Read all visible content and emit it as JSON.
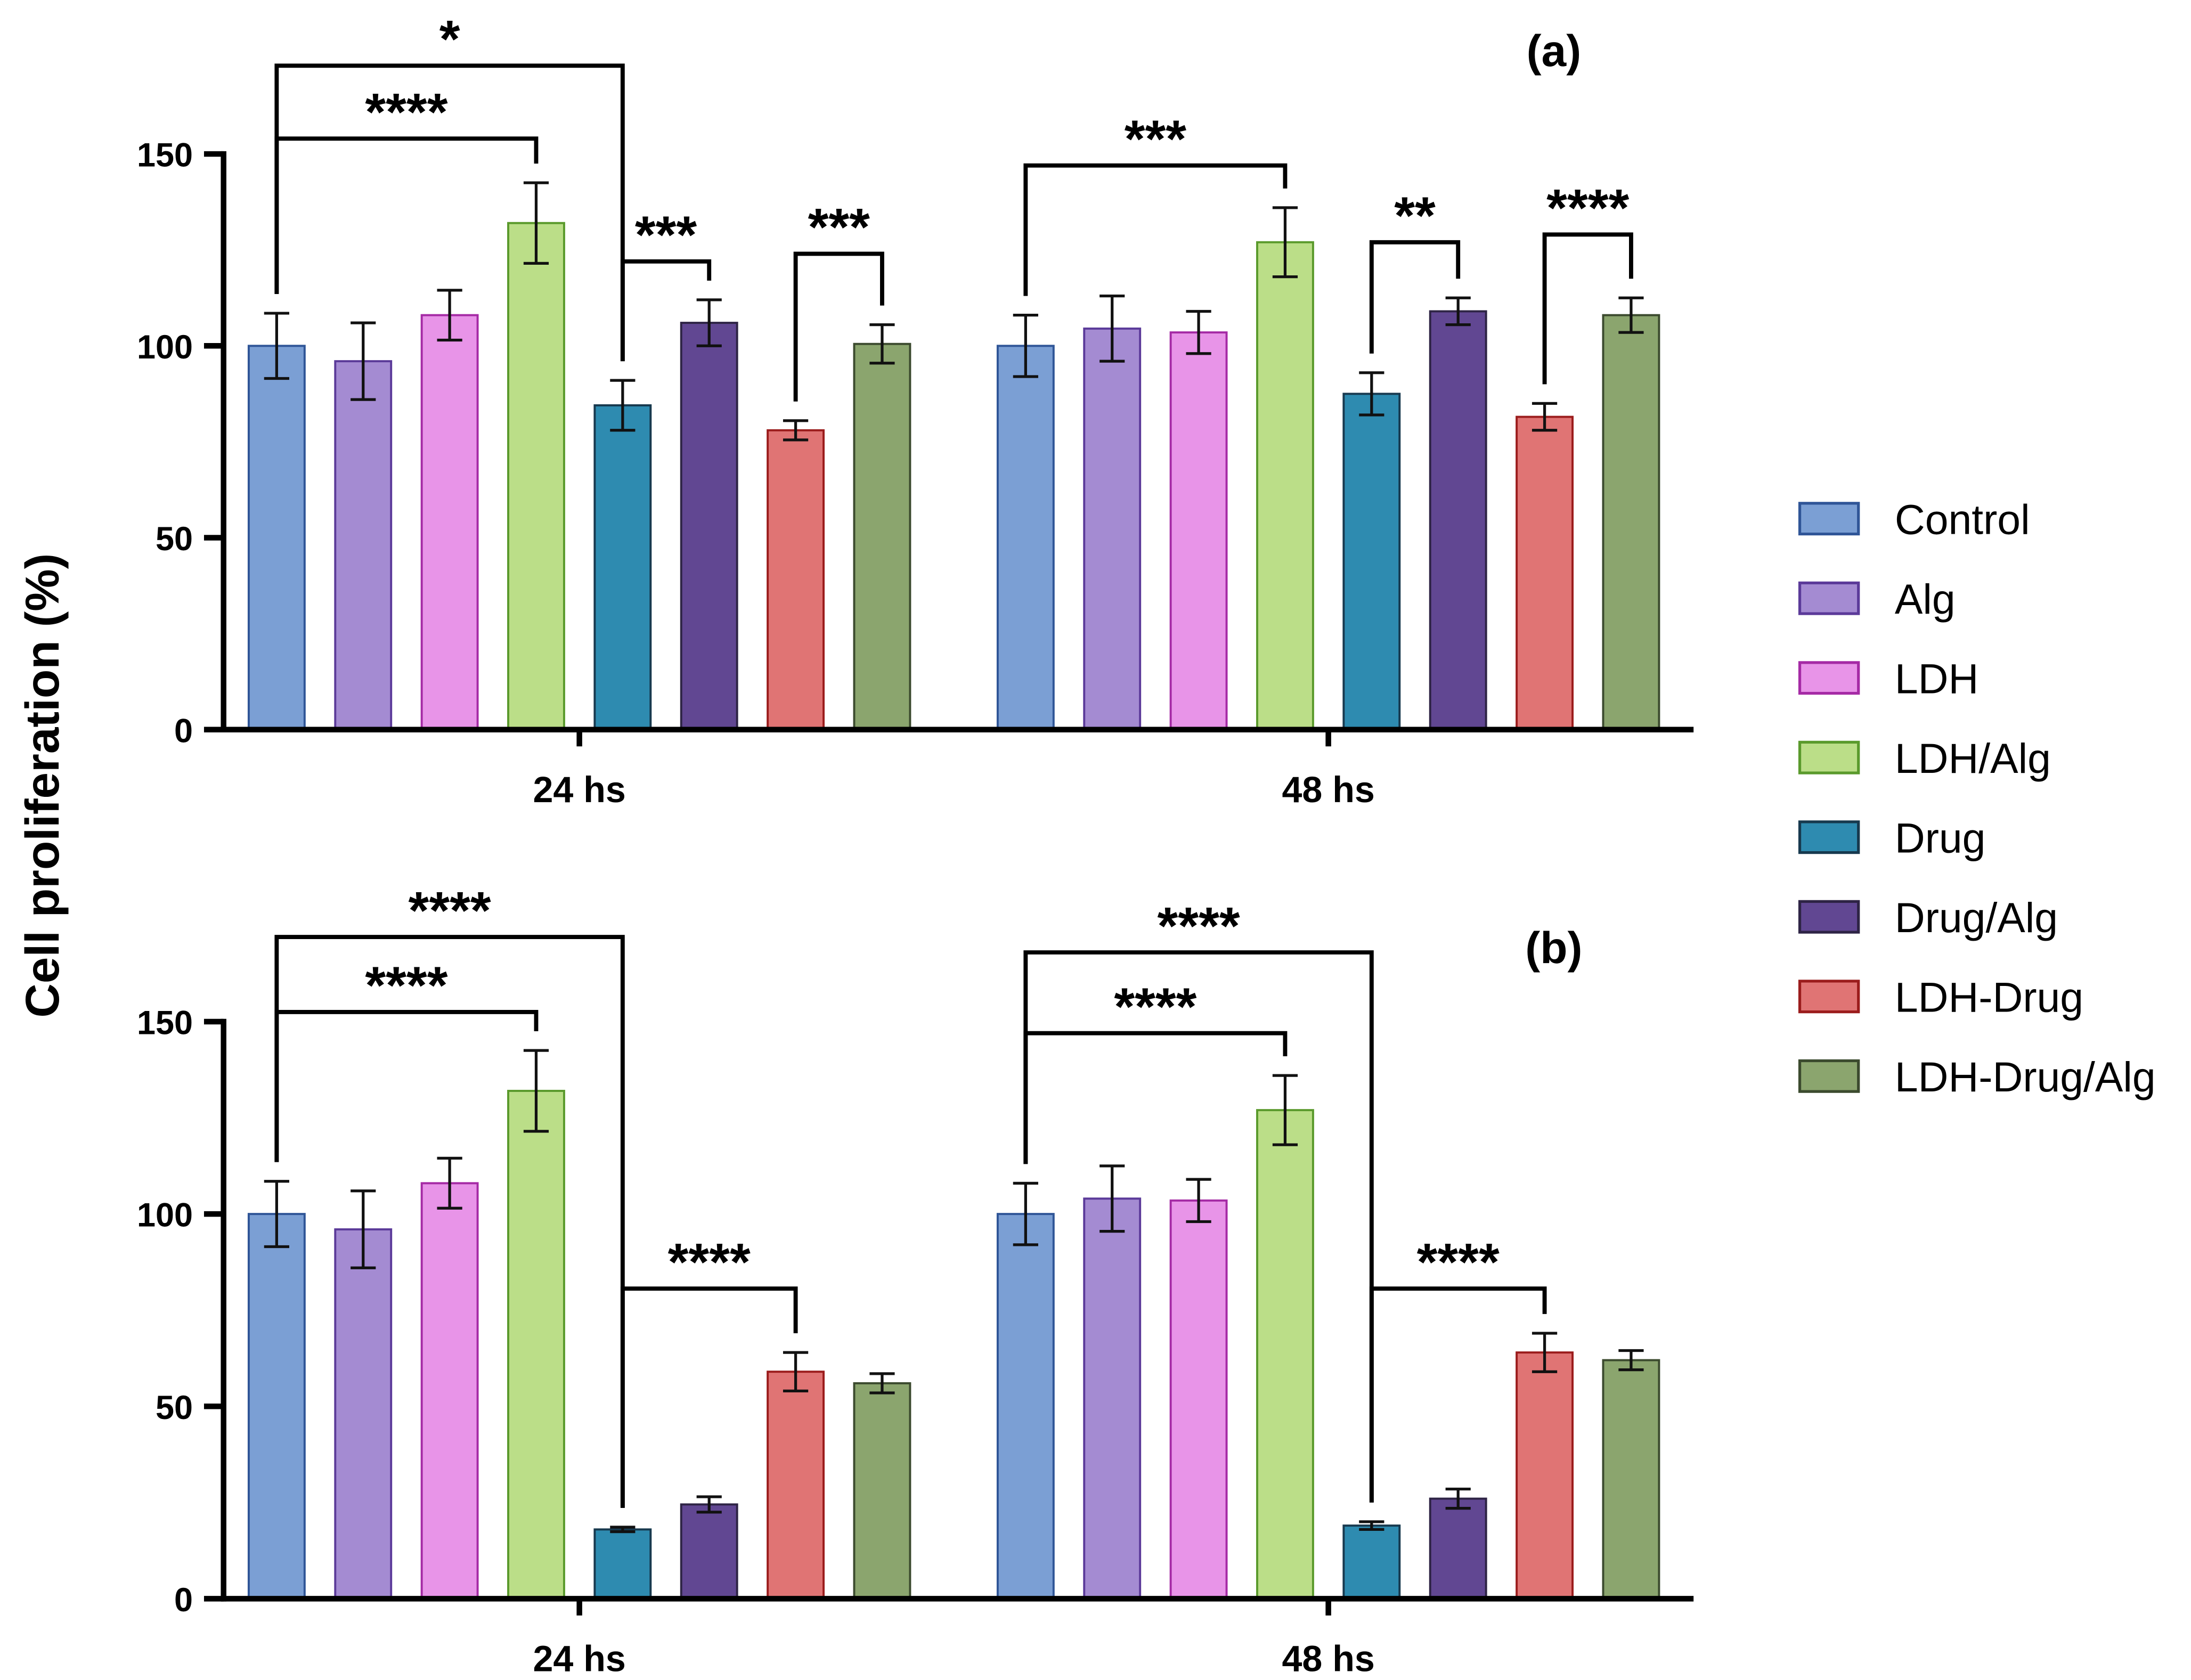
{
  "chart_data": {
    "type": "bar",
    "ylabel": "Cell proliferation (%)",
    "ylim": [
      0,
      150
    ],
    "yticks": [
      0,
      50,
      100,
      150
    ],
    "categories": [
      "24 hs",
      "48 hs"
    ],
    "legend": {
      "placement": "right",
      "entries": [
        {
          "name": "Control",
          "fill": "#7b9fd4",
          "stroke": "#2f5597"
        },
        {
          "name": "Alg",
          "fill": "#a48bd2",
          "stroke": "#5b3a99"
        },
        {
          "name": "LDH",
          "fill": "#e894e8",
          "stroke": "#a52aa5"
        },
        {
          "name": "LDH/Alg",
          "fill": "#bbde88",
          "stroke": "#5a9a2c"
        },
        {
          "name": "Drug",
          "fill": "#2e8bb0",
          "stroke": "#17394e"
        },
        {
          "name": "Drug/Alg",
          "fill": "#614792",
          "stroke": "#2e2445"
        },
        {
          "name": "LDH-Drug",
          "fill": "#e07474",
          "stroke": "#9b1c1c"
        },
        {
          "name": "LDH-Drug/Alg",
          "fill": "#8ba56e",
          "stroke": "#3b4a2e"
        }
      ]
    },
    "panels": [
      {
        "label": "(a)",
        "groups": [
          {
            "category": "24 hs",
            "values": [
              100,
              96,
              108,
              132,
              84.5,
              106,
              78,
              100.5
            ],
            "errors": [
              8.5,
              10,
              6.5,
              10.5,
              6.5,
              6,
              2.5,
              5
            ]
          },
          {
            "category": "48 hs",
            "values": [
              100,
              104.5,
              103.5,
              127,
              87.5,
              109,
              81.5,
              108
            ],
            "errors": [
              8,
              8.5,
              5.5,
              9,
              5.5,
              3.5,
              3.5,
              4.5
            ]
          }
        ],
        "significance": [
          {
            "group": 0,
            "from": 0,
            "to": 4,
            "level": 173,
            "label": "*"
          },
          {
            "group": 0,
            "from": 0,
            "to": 3,
            "level": 154,
            "label": "****"
          },
          {
            "group": 0,
            "from": 4,
            "to": 5,
            "level": 122,
            "label": "***"
          },
          {
            "group": 0,
            "from": 6,
            "to": 7,
            "level": 124,
            "label": "***"
          },
          {
            "group": 1,
            "from": 0,
            "to": 3,
            "level": 147,
            "label": "***"
          },
          {
            "group": 1,
            "from": 4,
            "to": 5,
            "level": 127,
            "label": "**"
          },
          {
            "group": 1,
            "from": 6,
            "to": 7,
            "level": 129,
            "label": "****"
          }
        ]
      },
      {
        "label": "(b)",
        "groups": [
          {
            "category": "24 hs",
            "values": [
              100,
              96,
              108,
              132,
              18,
              24.5,
              59,
              56
            ],
            "errors": [
              8.5,
              10,
              6.5,
              10.5,
              0.6,
              2,
              5,
              2.5
            ]
          },
          {
            "category": "48 hs",
            "values": [
              100,
              104,
              103.5,
              127,
              19,
              26,
              64,
              62
            ],
            "errors": [
              8,
              8.5,
              5.5,
              9,
              1,
              2.5,
              5,
              2.5
            ]
          }
        ],
        "significance": [
          {
            "group": 0,
            "from": 0,
            "to": 4,
            "level": 172,
            "label": "****"
          },
          {
            "group": 0,
            "from": 0,
            "to": 3,
            "level": 152.5,
            "label": "****"
          },
          {
            "group": 0,
            "from": 4,
            "to": 6,
            "level": 80.6,
            "label": "****"
          },
          {
            "group": 1,
            "from": 0,
            "to": 4,
            "level": 168,
            "label": "****"
          },
          {
            "group": 1,
            "from": 0,
            "to": 3,
            "level": 147,
            "label": "****"
          },
          {
            "group": 1,
            "from": 4,
            "to": 6,
            "level": 80.6,
            "label": "****"
          }
        ]
      }
    ]
  }
}
